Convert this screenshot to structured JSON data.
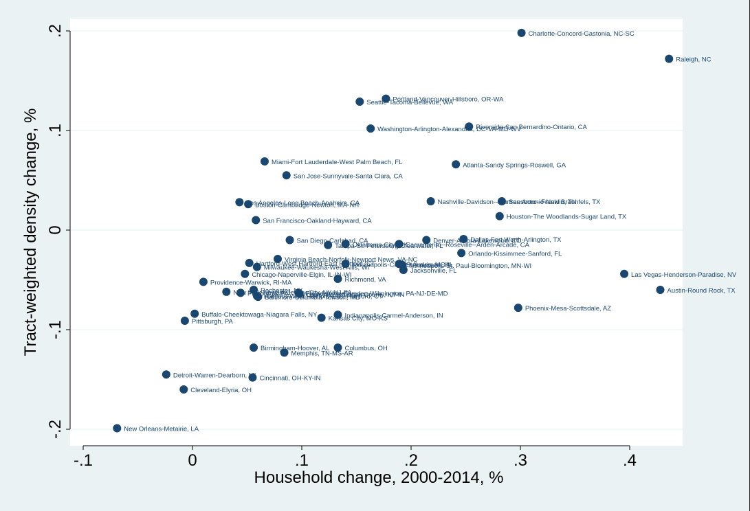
{
  "chart_data": {
    "type": "scatter",
    "title": "",
    "xlabel": "Household change, 2000-2014, %",
    "ylabel": "Tract-weighted density change, %",
    "xlim": [
      -0.1,
      0.45
    ],
    "ylim": [
      -0.2,
      0.2
    ],
    "xticks": [
      -0.1,
      0,
      0.1,
      0.2,
      0.3,
      0.4
    ],
    "xtick_labels": [
      "-.1",
      "0",
      ".1",
      ".2",
      ".3",
      ".4"
    ],
    "yticks": [
      -0.2,
      -0.1,
      0,
      0.1,
      0.2
    ],
    "ytick_labels": [
      "-.2",
      "-.1",
      "0",
      ".1",
      ".2"
    ],
    "grid": true,
    "marker_color": "#1a476f",
    "points": [
      {
        "label": "Charlotte-Concord-Gastonia, NC-SC",
        "x": 0.301,
        "y": 0.198
      },
      {
        "label": "Raleigh, NC",
        "x": 0.436,
        "y": 0.172
      },
      {
        "label": "Portland-Vancouver-Hillsboro, OR-WA",
        "x": 0.177,
        "y": 0.132
      },
      {
        "label": "Seattle-Tacoma-Bellevue, WA",
        "x": 0.153,
        "y": 0.129
      },
      {
        "label": "Washington-Arlington-Alexandria, DC-VA-MD-WV",
        "x": 0.163,
        "y": 0.102
      },
      {
        "label": "Riverside-San Bernardino-Ontario, CA",
        "x": 0.253,
        "y": 0.104
      },
      {
        "label": "Miami-Fort Lauderdale-West Palm Beach, FL",
        "x": 0.066,
        "y": 0.069
      },
      {
        "label": "Atlanta-Sandy Springs-Roswell, GA",
        "x": 0.241,
        "y": 0.066
      },
      {
        "label": "San Jose-Sunnyvale-Santa Clara, CA",
        "x": 0.086,
        "y": 0.055
      },
      {
        "label": "Los Angeles-Long Beach-Anaheim, CA",
        "x": 0.043,
        "y": 0.028
      },
      {
        "label": "Boston-Cambridge-Newton, MA-NH",
        "x": 0.051,
        "y": 0.026
      },
      {
        "label": "Nashville-Davidson--Murfreesboro--Franklin, TN",
        "x": 0.218,
        "y": 0.029
      },
      {
        "label": "San Antonio-New Braunfels, TX",
        "x": 0.283,
        "y": 0.029
      },
      {
        "label": "Houston-The Woodlands-Sugar Land, TX",
        "x": 0.281,
        "y": 0.014
      },
      {
        "label": "San Francisco-Oakland-Hayward, CA",
        "x": 0.058,
        "y": 0.01
      },
      {
        "label": "San Diego-Carlsbad, CA",
        "x": 0.089,
        "y": -0.01
      },
      {
        "label": "Tampa-St. Petersburg-Clearwater, FL",
        "x": 0.124,
        "y": -0.015
      },
      {
        "label": "Oklahoma City, OK",
        "x": 0.14,
        "y": -0.014
      },
      {
        "label": "Sacramento--Roseville--Arden-Arcade, CA",
        "x": 0.189,
        "y": -0.014
      },
      {
        "label": "Denver-Aurora-Lakewood, CO",
        "x": 0.214,
        "y": -0.01
      },
      {
        "label": "Dallas-Fort Worth-Arlington, TX",
        "x": 0.248,
        "y": -0.009
      },
      {
        "label": "Orlando-Kissimmee-Sanford, FL",
        "x": 0.246,
        "y": -0.023
      },
      {
        "label": "Virginia Beach-Norfolk-Newport News, VA-NC",
        "x": 0.078,
        "y": -0.029
      },
      {
        "label": "Hartford-West Hartford-East Hartford, CT",
        "x": 0.052,
        "y": -0.033
      },
      {
        "label": "Milwaukee-Waukesha-West Allis, WI",
        "x": 0.059,
        "y": -0.037
      },
      {
        "label": "Indianapolis-Carmel-Anderson, IN",
        "x": 0.14,
        "y": -0.034
      },
      {
        "label": "St. Louis, MO-IL",
        "x": 0.189,
        "y": -0.034
      },
      {
        "label": "Minneapolis-St. Paul-Bloomington, MN-WI",
        "x": 0.192,
        "y": -0.035
      },
      {
        "label": "Jacksonville, FL",
        "x": 0.193,
        "y": -0.04
      },
      {
        "label": "Chicago-Naperville-Elgin, IL-IN-WI",
        "x": 0.048,
        "y": -0.044
      },
      {
        "label": "Richmond, VA",
        "x": 0.133,
        "y": -0.049
      },
      {
        "label": "Las Vegas-Henderson-Paradise, NV",
        "x": 0.395,
        "y": -0.044
      },
      {
        "label": "Providence-Warwick, RI-MA",
        "x": 0.01,
        "y": -0.052
      },
      {
        "label": "Austin-Round Rock, TX",
        "x": 0.428,
        "y": -0.06
      },
      {
        "label": "Rochester, NY",
        "x": 0.056,
        "y": -0.06
      },
      {
        "label": "New York-Newark-Jersey City, NY-NJ-PA",
        "x": 0.031,
        "y": -0.062
      },
      {
        "label": "Pittsburgh, PA",
        "x": 0.044,
        "y": -0.063
      },
      {
        "label": "Philadelphia-Camden-Wilmington, PA-NJ-DE-MD",
        "x": 0.097,
        "y": -0.063
      },
      {
        "label": "Louisville/Jefferson County, KY-IN",
        "x": 0.098,
        "y": -0.064
      },
      {
        "label": "Hartford-West Hartford-East Hartford, CT",
        "x": 0.059,
        "y": -0.066
      },
      {
        "label": "Baltimore-Columbia-Towson, MD",
        "x": 0.06,
        "y": -0.067
      },
      {
        "label": "Phoenix-Mesa-Scottsdale, AZ",
        "x": 0.298,
        "y": -0.078
      },
      {
        "label": "Buffalo-Cheektowaga-Niagara Falls, NY",
        "x": 0.002,
        "y": -0.084
      },
      {
        "label": "Indianapolis-Carmel-Anderson, IN",
        "x": 0.133,
        "y": -0.085
      },
      {
        "label": "Kansas City, MO-KS",
        "x": 0.118,
        "y": -0.088
      },
      {
        "label": "Pittsburgh, PA",
        "x": -0.007,
        "y": -0.091
      },
      {
        "label": "Birmingham-Hoover, AL",
        "x": 0.056,
        "y": -0.118
      },
      {
        "label": "Columbus, OH",
        "x": 0.133,
        "y": -0.118
      },
      {
        "label": "Memphis, TN-MS-AR",
        "x": 0.084,
        "y": -0.123
      },
      {
        "label": "Detroit-Warren-Dearborn, MI",
        "x": -0.024,
        "y": -0.145
      },
      {
        "label": "Cincinnati, OH-KY-IN",
        "x": 0.055,
        "y": -0.148
      },
      {
        "label": "Cleveland-Elyria, OH",
        "x": -0.008,
        "y": -0.16
      },
      {
        "label": "New Orleans-Metairie, LA",
        "x": -0.069,
        "y": -0.199
      }
    ]
  }
}
